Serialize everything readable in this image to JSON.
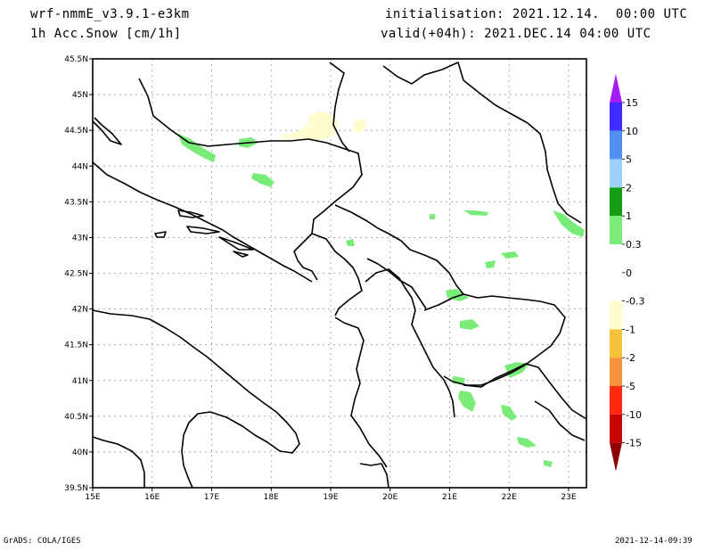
{
  "header": {
    "model": "wrf-nmmE_v3.9.1-e3km",
    "field": "1h Acc.Snow [cm/1h]",
    "init": "initialisation: 2021.12.14.  00:00 UTC",
    "valid": "valid(+04h): 2021.DEC.14 04:00 UTC"
  },
  "map": {
    "lat_labels": [
      "45.5N",
      "45N",
      "44.5N",
      "44N",
      "43.5N",
      "43N",
      "42.5N",
      "42N",
      "41.5N",
      "41N",
      "40.5N",
      "40N",
      "39.5N"
    ],
    "lon_labels": [
      "15E",
      "16E",
      "17E",
      "18E",
      "19E",
      "20E",
      "21E",
      "22E",
      "23E"
    ],
    "grid": "dotted"
  },
  "colorbar": {
    "labels": [
      "15",
      "10",
      "5",
      "2",
      "1",
      "0.3",
      "0",
      "-0.3",
      "-1",
      "-2",
      "-5",
      "-10",
      "-15"
    ],
    "colors": [
      "#3f2bff",
      "#4f8ff2",
      "#9ed0fb",
      "#149e14",
      "#78eb78",
      "#ffffff",
      "#ffffff",
      "#fffdd0",
      "#f4c23c",
      "#f6913c",
      "#fd2a10",
      "#c80303",
      "#8d0202"
    ],
    "top_color": "#a41bf5"
  },
  "footer": {
    "left": "GrADS: COLA/IGES",
    "right": "2021-12-14-09:39"
  }
}
